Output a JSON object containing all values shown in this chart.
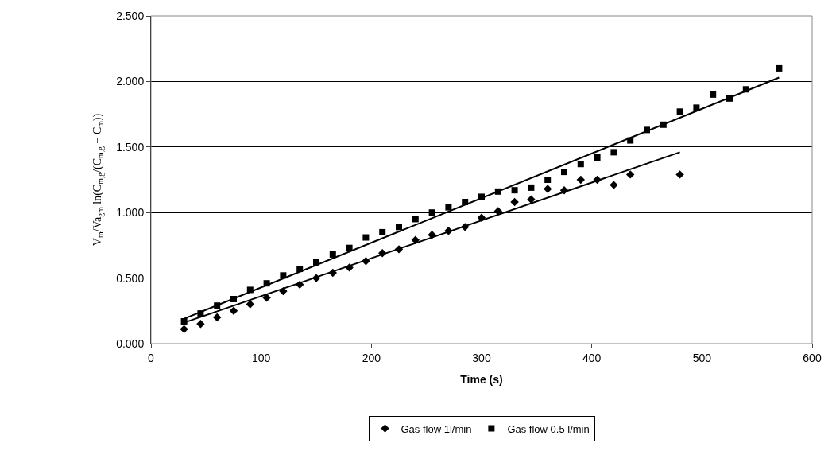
{
  "chart_data": {
    "type": "scatter",
    "xlabel": "Time (s)",
    "ylabel": "V$_{m}$/Va$_{gm}$ ln(C$_{m,g}$/(C$_{m,g}$ − C$_{m}$))",
    "xlim": [
      0,
      600
    ],
    "xticks": [
      0,
      100,
      200,
      300,
      400,
      500,
      600
    ],
    "ylim": [
      0,
      2.5
    ],
    "yticks": [
      {
        "value": 0,
        "label": "0.000"
      },
      {
        "value": 0.5,
        "label": "0.500"
      },
      {
        "value": 1,
        "label": "1.000"
      },
      {
        "value": 1.5,
        "label": "1.500"
      },
      {
        "value": 2,
        "label": "2.000"
      },
      {
        "value": 2.5,
        "label": "2.500"
      }
    ],
    "grid": "y",
    "legend": "bottom",
    "series": [
      {
        "name": "Gas flow 1l/min",
        "color": "#000000",
        "marker": "diamond",
        "x": [
          30,
          45,
          60,
          75,
          90,
          105,
          120,
          135,
          150,
          165,
          180,
          195,
          210,
          225,
          240,
          255,
          270,
          285,
          300,
          315,
          330,
          345,
          360,
          375,
          390,
          405,
          420,
          435,
          480
        ],
        "values": [
          0.11,
          0.15,
          0.2,
          0.25,
          0.3,
          0.35,
          0.4,
          0.45,
          0.5,
          0.54,
          0.58,
          0.63,
          0.69,
          0.72,
          0.79,
          0.83,
          0.86,
          0.89,
          0.96,
          1.01,
          1.08,
          1.1,
          1.18,
          1.17,
          1.25,
          1.25,
          1.21,
          1.29,
          1.29
        ]
      },
      {
        "name": "Gas flow 0.5 l/min",
        "color": "#000000",
        "marker": "square",
        "x": [
          30,
          45,
          60,
          75,
          90,
          105,
          120,
          135,
          150,
          165,
          180,
          195,
          210,
          225,
          240,
          255,
          270,
          285,
          300,
          315,
          330,
          345,
          360,
          375,
          390,
          405,
          420,
          435,
          450,
          465,
          480,
          495,
          510,
          525,
          540,
          570
        ],
        "values": [
          0.17,
          0.23,
          0.29,
          0.34,
          0.41,
          0.46,
          0.52,
          0.57,
          0.62,
          0.68,
          0.73,
          0.81,
          0.85,
          0.89,
          0.95,
          1.0,
          1.04,
          1.08,
          1.12,
          1.16,
          1.17,
          1.19,
          1.25,
          1.31,
          1.37,
          1.42,
          1.46,
          1.55,
          1.63,
          1.67,
          1.77,
          1.8,
          1.9,
          1.87,
          1.94,
          2.1
        ]
      },
      {
        "type": "line",
        "color": "#000000",
        "marker": "none",
        "x": [
          30,
          480
        ],
        "values": [
          0.16,
          1.46
        ]
      },
      {
        "type": "line",
        "color": "#000000",
        "marker": "none",
        "x": [
          30,
          570
        ],
        "values": [
          0.19,
          2.03
        ]
      }
    ]
  }
}
